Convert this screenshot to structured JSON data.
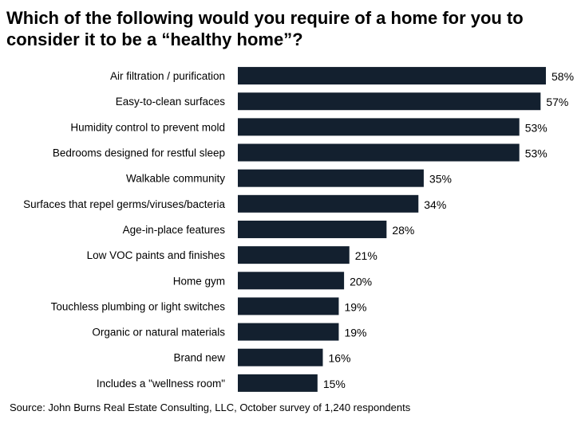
{
  "chart_data": {
    "type": "bar",
    "orientation": "horizontal",
    "title_lines": [
      "Which of the following would you require of a home for you to",
      "consider it to be a “healthy home”?"
    ],
    "categories": [
      "Air filtration / purification",
      "Easy-to-clean surfaces",
      "Humidity control to prevent mold",
      "Bedrooms designed for restful sleep",
      "Walkable community",
      "Surfaces that repel germs/viruses/bacteria",
      "Age-in-place features",
      "Low VOC paints and finishes",
      "Home gym",
      "Touchless plumbing or light switches",
      "Organic or natural materials",
      "Brand new",
      "Includes a \"wellness room\""
    ],
    "values": [
      58,
      57,
      53,
      53,
      35,
      34,
      28,
      21,
      20,
      19,
      19,
      16,
      15
    ],
    "value_labels": [
      "58%",
      "57%",
      "53%",
      "53%",
      "35%",
      "34%",
      "28%",
      "21%",
      "20%",
      "19%",
      "19%",
      "16%",
      "15%"
    ],
    "xlim": [
      0,
      58
    ],
    "grid": false,
    "bar_color": "#13202f",
    "source": "Source: John Burns Real Estate Consulting, LLC, October survey of 1,240 respondents"
  }
}
